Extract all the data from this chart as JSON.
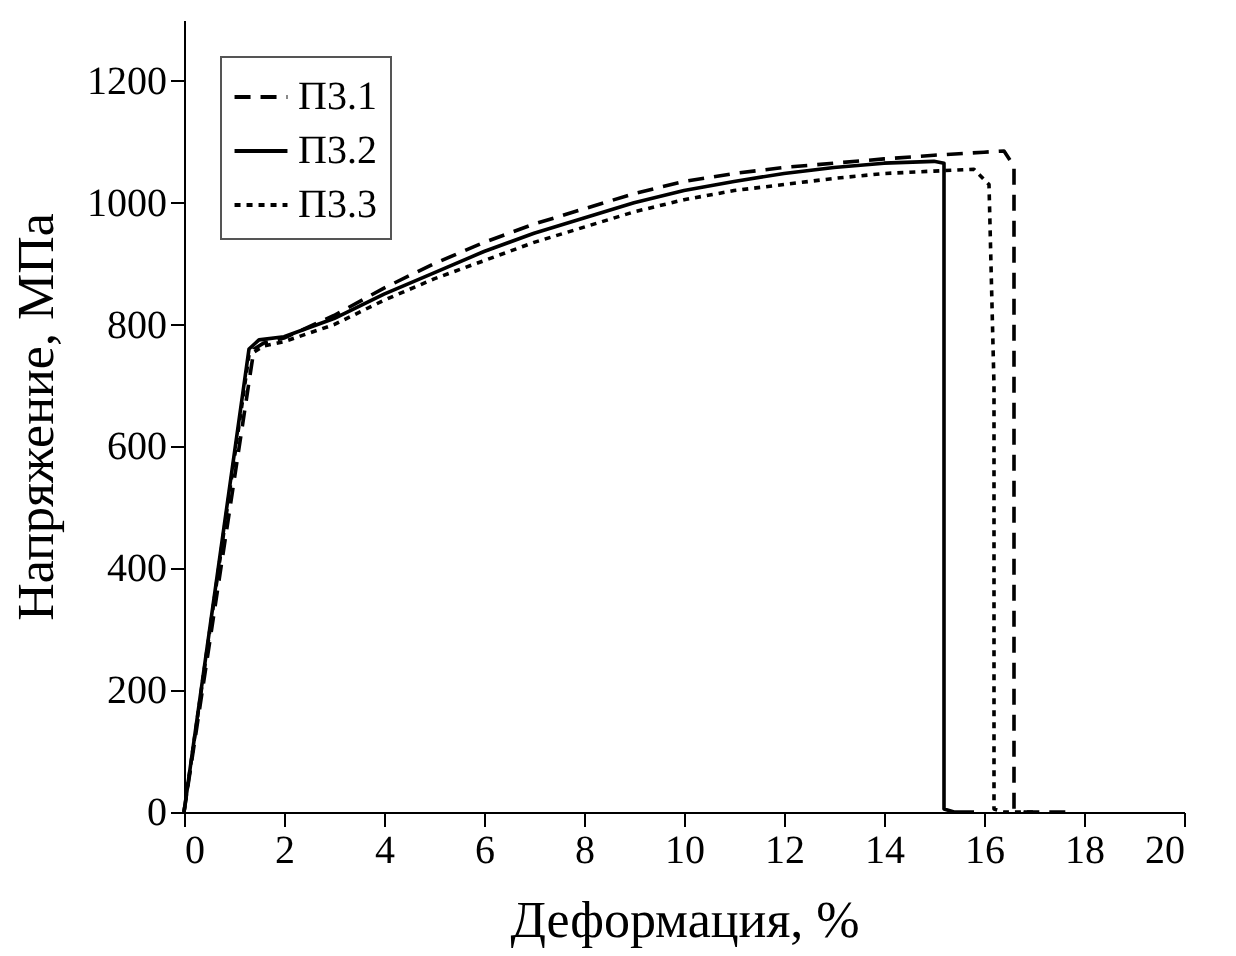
{
  "chart_data": {
    "type": "line",
    "xlabel": "Деформация, %",
    "ylabel": "Напряжение, МПа",
    "xlim": [
      0,
      20
    ],
    "xticks": [
      0,
      2,
      4,
      6,
      8,
      10,
      12,
      14,
      16,
      18,
      20
    ],
    "ylim": [
      0,
      1300
    ],
    "yticks": [
      0,
      200,
      400,
      600,
      800,
      1000,
      1200
    ],
    "grid": false,
    "legend": "top left",
    "marker": "none",
    "series": [
      {
        "name": "П3.1",
        "color": "#000000",
        "line_style": "dashed",
        "x": [
          0,
          1.4,
          1.6,
          2,
          3,
          4,
          5,
          6,
          7,
          8,
          9,
          10,
          11,
          12,
          13,
          14,
          15,
          16,
          16.4,
          16.6,
          16.6,
          16.8,
          17.8
        ],
        "values": [
          0,
          760,
          770,
          778,
          815,
          860,
          900,
          935,
          965,
          990,
          1015,
          1035,
          1048,
          1058,
          1065,
          1072,
          1078,
          1083,
          1085,
          1060,
          5,
          0,
          0
        ]
      },
      {
        "name": "П3.2",
        "color": "#000000",
        "line_style": "solid",
        "x": [
          0,
          1.3,
          1.5,
          2,
          3,
          4,
          5,
          6,
          7,
          8,
          9,
          10,
          11,
          12,
          13,
          14,
          15,
          15.2,
          15.2,
          15.4,
          15.8
        ],
        "values": [
          0,
          760,
          775,
          780,
          810,
          850,
          885,
          920,
          950,
          975,
          1000,
          1020,
          1035,
          1048,
          1058,
          1065,
          1068,
          1065,
          5,
          0,
          0
        ]
      },
      {
        "name": "П3.3",
        "color": "#000000",
        "line_style": "dotted",
        "x": [
          0,
          1.3,
          1.6,
          2,
          3,
          4,
          5,
          6,
          7,
          8,
          9,
          10,
          11,
          12,
          13,
          14,
          15,
          15.8,
          16.1,
          16.2,
          16.2,
          16.4,
          17
        ],
        "values": [
          0,
          750,
          765,
          772,
          800,
          840,
          875,
          905,
          935,
          960,
          985,
          1005,
          1020,
          1030,
          1040,
          1048,
          1052,
          1055,
          1030,
          700,
          5,
          0,
          0
        ]
      }
    ]
  }
}
